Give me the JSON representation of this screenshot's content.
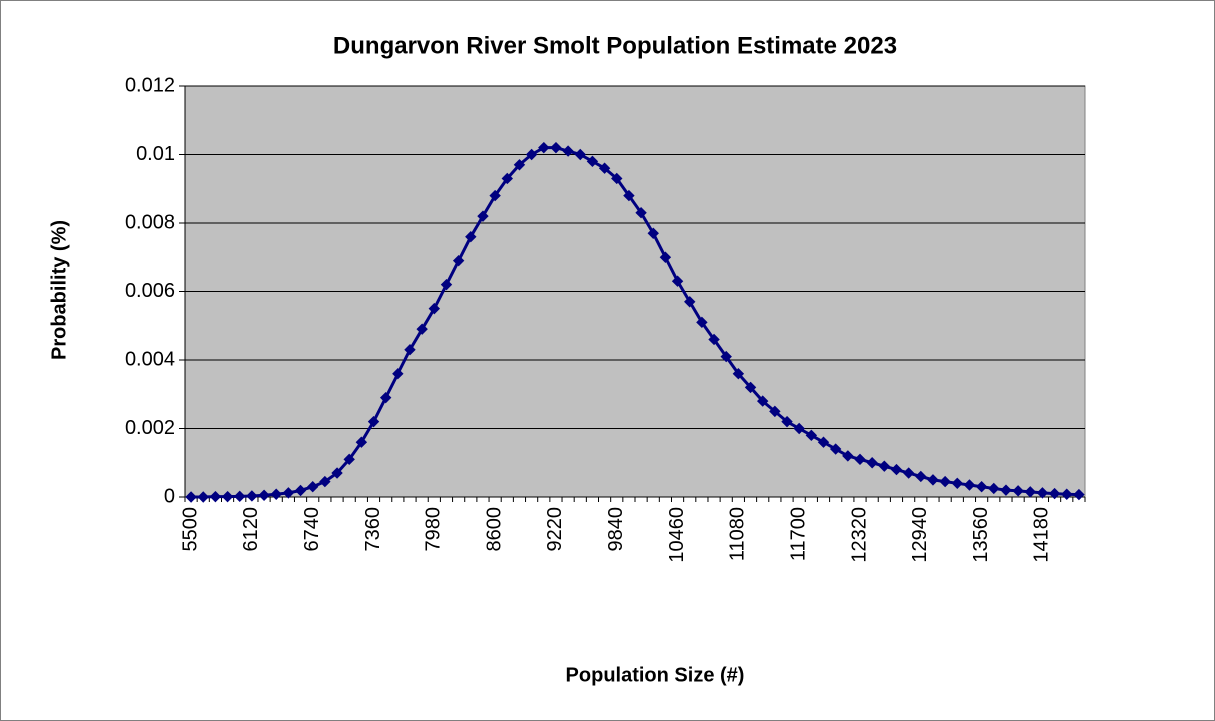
{
  "chart_data": {
    "type": "line",
    "title": "Dungarvon River Smolt Population Estimate 2023",
    "x_label": "Population Size (#)",
    "y_label": "Probability (%)",
    "categories": [
      "5500",
      null,
      null,
      null,
      null,
      "6120",
      null,
      null,
      null,
      null,
      "6740",
      null,
      null,
      null,
      null,
      "7360",
      null,
      null,
      null,
      null,
      "7980",
      null,
      null,
      null,
      null,
      "8600",
      null,
      null,
      null,
      null,
      "9220",
      null,
      null,
      null,
      null,
      "9840",
      null,
      null,
      null,
      null,
      "10460",
      null,
      null,
      null,
      null,
      "11080",
      null,
      null,
      null,
      null,
      "11700",
      null,
      null,
      null,
      null,
      "12320",
      null,
      null,
      null,
      null,
      "12940",
      null,
      null,
      null,
      null,
      "13560",
      null,
      null,
      null,
      null,
      "14180",
      null,
      null,
      null
    ],
    "series": [
      {
        "name": "Probability",
        "color": "#000080",
        "values": [
          0,
          0,
          1e-05,
          1e-05,
          2e-05,
          3e-05,
          5e-05,
          8e-05,
          0.00012,
          0.00019,
          0.0003,
          0.00045,
          0.0007,
          0.0011,
          0.0016,
          0.0022,
          0.0029,
          0.0036,
          0.0043,
          0.0049,
          0.0055,
          0.0062,
          0.0069,
          0.0076,
          0.0082,
          0.0088,
          0.0093,
          0.0097,
          0.01,
          0.0102,
          0.0102,
          0.0101,
          0.01,
          0.0098,
          0.0096,
          0.0093,
          0.0088,
          0.0083,
          0.0077,
          0.007,
          0.0063,
          0.0057,
          0.0051,
          0.0046,
          0.0041,
          0.0036,
          0.0032,
          0.0028,
          0.0025,
          0.0022,
          0.002,
          0.0018,
          0.0016,
          0.0014,
          0.0012,
          0.0011,
          0.001,
          0.0009,
          0.0008,
          0.0007,
          0.0006,
          0.0005,
          0.00045,
          0.0004,
          0.00035,
          0.0003,
          0.00025,
          0.0002,
          0.00018,
          0.00015,
          0.00012,
          0.0001,
          8e-05,
          7e-05
        ]
      }
    ],
    "ylim": [
      0,
      0.012
    ],
    "yticks": [
      0,
      0.002,
      0.004,
      0.006,
      0.008,
      0.01,
      0.012
    ],
    "grid": true,
    "plot_background": "#c0c0c0"
  }
}
